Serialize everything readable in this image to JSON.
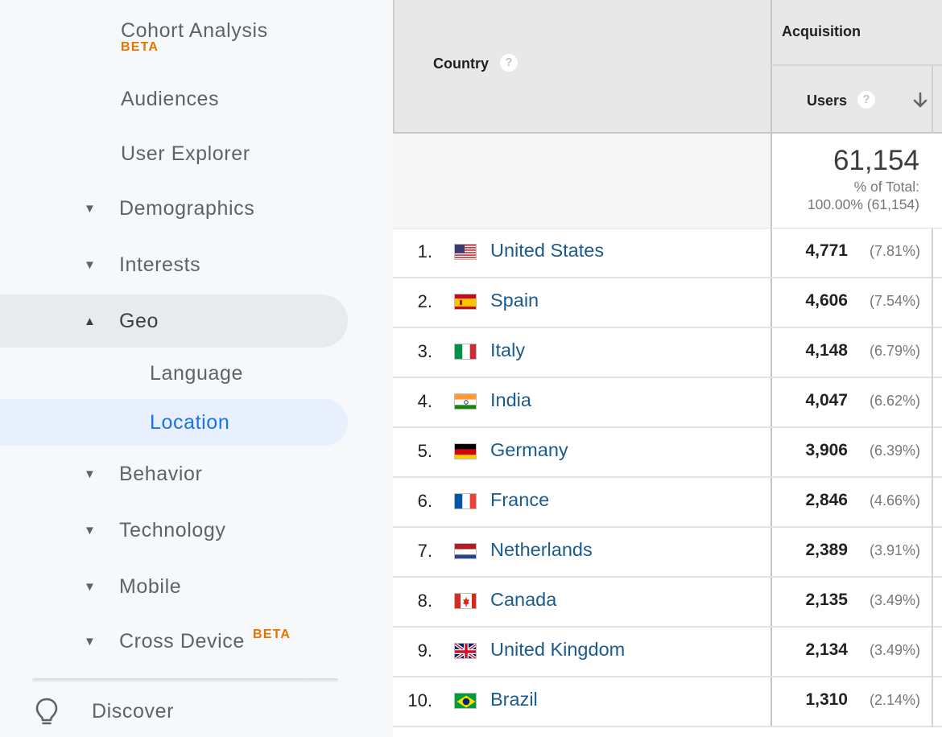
{
  "sidebar": {
    "cohort_analysis": "Cohort Analysis",
    "cohort_beta": "BETA",
    "audiences": "Audiences",
    "user_explorer": "User Explorer",
    "demographics": "Demographics",
    "interests": "Interests",
    "geo": "Geo",
    "language": "Language",
    "location": "Location",
    "behavior": "Behavior",
    "technology": "Technology",
    "mobile": "Mobile",
    "cross_device": "Cross Device",
    "cross_device_beta": "BETA",
    "discover": "Discover",
    "caret_down": "▼",
    "caret_up": "▲"
  },
  "table": {
    "country_header": "Country",
    "acquisition_header": "Acquisition",
    "users_header": "Users",
    "help_glyph": "?",
    "total_users": "61,154",
    "total_pct_line1": "% of Total:",
    "total_pct_line2": "100.00% (61,154)",
    "rows": [
      {
        "rank": "1.",
        "country": "United States",
        "flag": "us",
        "users": "4,771",
        "pct": "(7.81%)"
      },
      {
        "rank": "2.",
        "country": "Spain",
        "flag": "es",
        "users": "4,606",
        "pct": "(7.54%)"
      },
      {
        "rank": "3.",
        "country": "Italy",
        "flag": "it",
        "users": "4,148",
        "pct": "(6.79%)"
      },
      {
        "rank": "4.",
        "country": "India",
        "flag": "in",
        "users": "4,047",
        "pct": "(6.62%)"
      },
      {
        "rank": "5.",
        "country": "Germany",
        "flag": "de",
        "users": "3,906",
        "pct": "(6.39%)"
      },
      {
        "rank": "6.",
        "country": "France",
        "flag": "fr",
        "users": "2,846",
        "pct": "(4.66%)"
      },
      {
        "rank": "7.",
        "country": "Netherlands",
        "flag": "nl",
        "users": "2,389",
        "pct": "(3.91%)"
      },
      {
        "rank": "8.",
        "country": "Canada",
        "flag": "ca",
        "users": "2,135",
        "pct": "(3.49%)"
      },
      {
        "rank": "9.",
        "country": "United Kingdom",
        "flag": "gb",
        "users": "2,134",
        "pct": "(3.49%)"
      },
      {
        "rank": "10.",
        "country": "Brazil",
        "flag": "br",
        "users": "1,310",
        "pct": "(2.14%)"
      }
    ]
  },
  "colors": {
    "link": "#1a5b8f",
    "beta": "#e37400",
    "active_nav_text": "#1a73e8",
    "active_nav_bg": "#e8f0fe",
    "geo_nav_bg": "#e8eaed"
  }
}
